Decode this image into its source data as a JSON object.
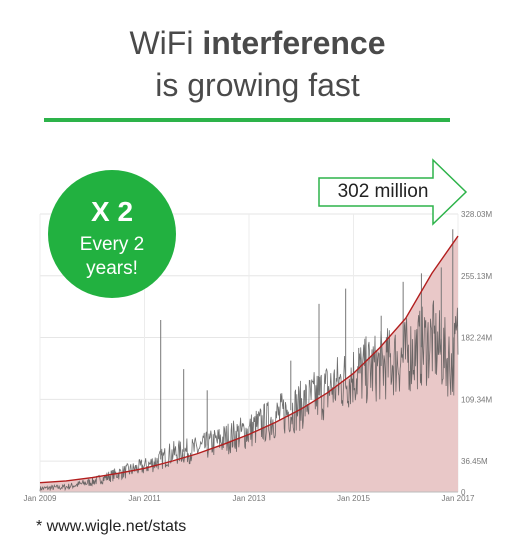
{
  "title": {
    "line1_prefix": "WiFi ",
    "line1_bold": "interference",
    "line2": "is growing fast"
  },
  "colors": {
    "accent_green": "#2db34a",
    "badge_green": "#22b140",
    "trend_red": "#b21e1e",
    "trend_fill": "#e9c8c8",
    "series_gray": "#555555"
  },
  "badge": {
    "line1": "X 2",
    "line2": "Every 2",
    "line3": "years!"
  },
  "callout": {
    "label": "302 million",
    "shape": "right-arrow"
  },
  "footnote": "* www.wigle.net/stats",
  "chart_data": {
    "type": "area",
    "title": "",
    "xlabel": "",
    "ylabel": "",
    "x_ticks": [
      "Jan 2009",
      "Jan 2011",
      "Jan 2013",
      "Jan 2015",
      "Jan 2017"
    ],
    "y_ticks": [
      "0",
      "36.45M",
      "109.34M",
      "182.24M",
      "255.13M",
      "328.03M"
    ],
    "ylim_millions": [
      0,
      328.03
    ],
    "xlim_years": [
      2009.0,
      2017.0
    ],
    "grid": true,
    "series": [
      {
        "kind": "trend-area",
        "x_years": [
          2009.0,
          2009.5,
          2010.0,
          2010.5,
          2011.0,
          2011.5,
          2012.0,
          2012.5,
          2013.0,
          2013.5,
          2014.0,
          2014.5,
          2015.0,
          2015.5,
          2016.0,
          2016.5,
          2017.0
        ],
        "y_millions": [
          11,
          13,
          17,
          22,
          28,
          36,
          45,
          56,
          68,
          82,
          98,
          117,
          140,
          170,
          205,
          258,
          302
        ]
      },
      {
        "kind": "daily-line",
        "x_years": [
          2009.0,
          2009.5,
          2010.0,
          2010.5,
          2011.0,
          2011.3,
          2011.5,
          2012.0,
          2012.5,
          2013.0,
          2013.5,
          2014.0,
          2014.5,
          2015.0,
          2015.5,
          2016.0,
          2016.5,
          2016.9,
          2017.0
        ],
        "y_millions": [
          4,
          6,
          12,
          22,
          30,
          38,
          45,
          50,
          62,
          72,
          88,
          102,
          120,
          138,
          148,
          160,
          178,
          150,
          186
        ],
        "spikes": [
          {
            "x": 2011.31,
            "y": 203
          },
          {
            "x": 2011.75,
            "y": 145
          },
          {
            "x": 2012.2,
            "y": 120
          },
          {
            "x": 2013.8,
            "y": 155
          },
          {
            "x": 2014.34,
            "y": 222
          },
          {
            "x": 2014.85,
            "y": 240
          },
          {
            "x": 2015.1,
            "y": 170
          },
          {
            "x": 2015.53,
            "y": 208
          },
          {
            "x": 2015.95,
            "y": 248
          },
          {
            "x": 2016.3,
            "y": 258
          },
          {
            "x": 2016.68,
            "y": 265
          },
          {
            "x": 2016.9,
            "y": 310
          }
        ]
      }
    ]
  }
}
